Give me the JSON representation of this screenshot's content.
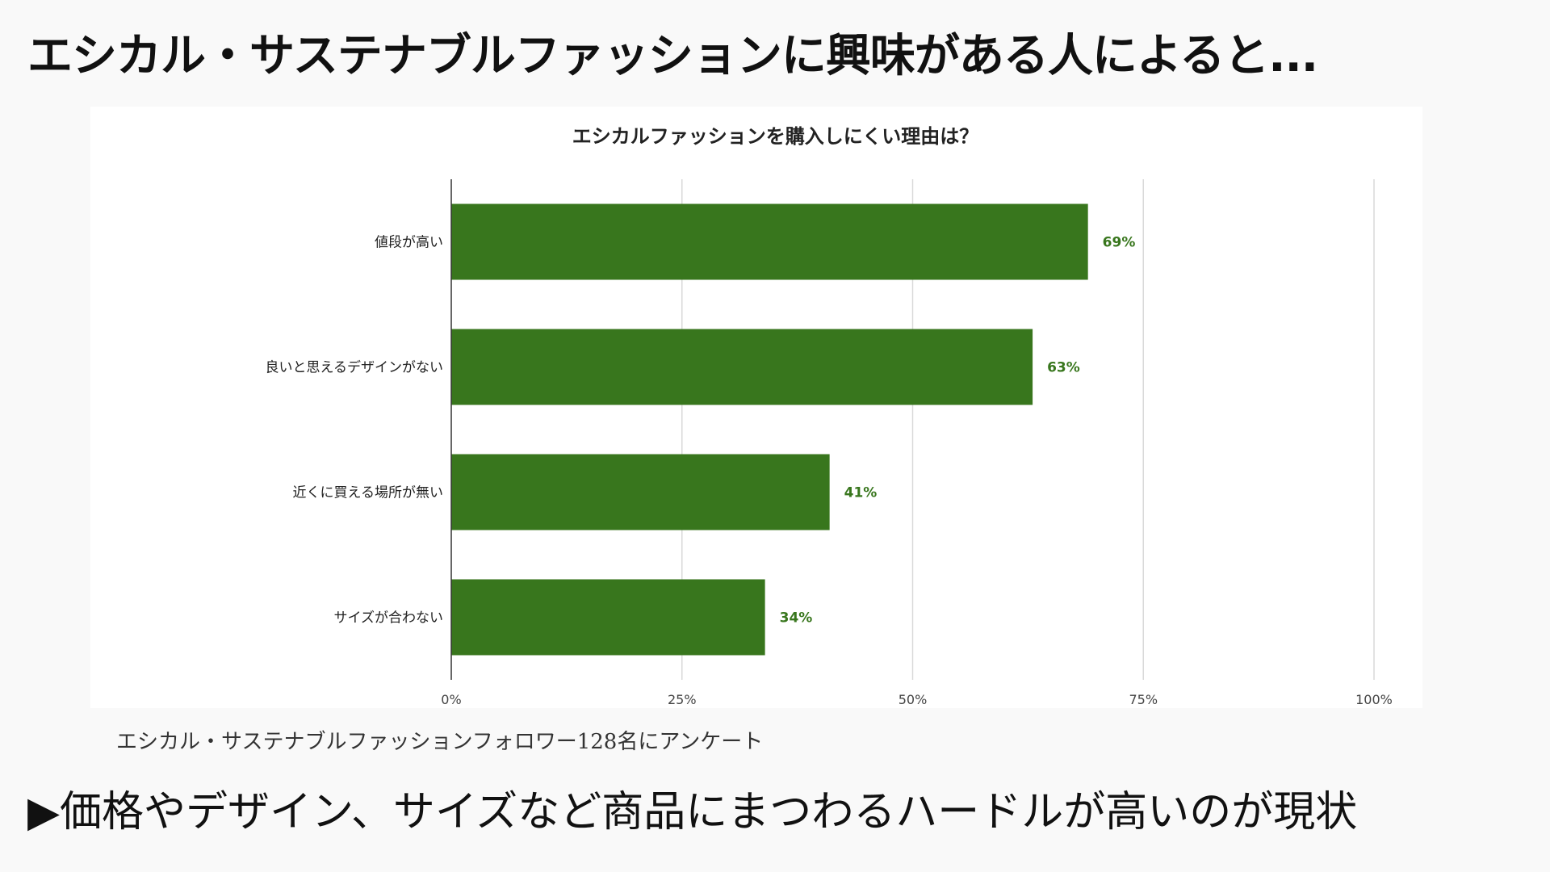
{
  "heading": "エシカル・サステナブルファッションに興味がある人によると...",
  "source_note": "エシカル・サステナブルファッションフォロワー128名にアンケート",
  "conclusion": "▶価格やデザイン、サイズなど商品にまつわるハードルが高いのが現状",
  "colors": {
    "bar": "#38761d",
    "value_label": "#38761d",
    "grid": "#d9d9d9",
    "axis": "#333333"
  },
  "chart_data": {
    "type": "bar",
    "orientation": "horizontal",
    "title": "エシカルファッションを購入しにくい理由は？",
    "categories": [
      "値段が高い",
      "良いと思えるデザインがない",
      "近くに買える場所が無い",
      "サイズが合わない"
    ],
    "values": [
      69,
      63,
      41,
      34
    ],
    "value_labels": [
      "69%",
      "63%",
      "41%",
      "34%"
    ],
    "xlim": [
      0,
      100
    ],
    "x_ticks": [
      0,
      25,
      50,
      75,
      100
    ],
    "x_tick_labels": [
      "0%",
      "25%",
      "50%",
      "75%",
      "100%"
    ],
    "xlabel": "",
    "ylabel": "",
    "grid": true,
    "legend": "none"
  }
}
